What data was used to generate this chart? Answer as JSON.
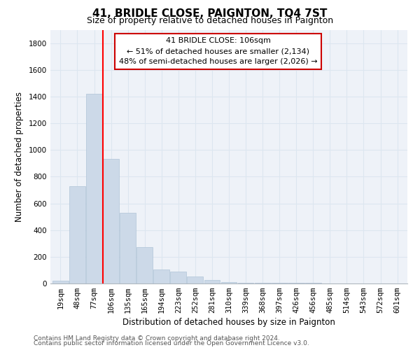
{
  "title": "41, BRIDLE CLOSE, PAIGNTON, TQ4 7ST",
  "subtitle": "Size of property relative to detached houses in Paignton",
  "xlabel": "Distribution of detached houses by size in Paignton",
  "ylabel": "Number of detached properties",
  "bar_labels": [
    "19sqm",
    "48sqm",
    "77sqm",
    "106sqm",
    "135sqm",
    "165sqm",
    "194sqm",
    "223sqm",
    "252sqm",
    "281sqm",
    "310sqm",
    "339sqm",
    "368sqm",
    "397sqm",
    "426sqm",
    "456sqm",
    "485sqm",
    "514sqm",
    "543sqm",
    "572sqm",
    "601sqm"
  ],
  "bar_values": [
    20,
    730,
    1420,
    935,
    530,
    270,
    103,
    90,
    50,
    25,
    10,
    5,
    3,
    3,
    3,
    3,
    2,
    2,
    2,
    2,
    2
  ],
  "bar_color": "#ccd9e8",
  "bar_edge_color": "#b0c4d8",
  "vline_x_index": 3,
  "vline_color": "red",
  "annotation_lines": [
    "41 BRIDLE CLOSE: 106sqm",
    "← 51% of detached houses are smaller (2,134)",
    "48% of semi-detached houses are larger (2,026) →"
  ],
  "annotation_box_color": "white",
  "annotation_box_edge": "#cc0000",
  "ylim": [
    0,
    1900
  ],
  "yticks": [
    0,
    200,
    400,
    600,
    800,
    1000,
    1200,
    1400,
    1600,
    1800
  ],
  "footer_line1": "Contains HM Land Registry data © Crown copyright and database right 2024.",
  "footer_line2": "Contains public sector information licensed under the Open Government Licence v3.0.",
  "title_fontsize": 11,
  "subtitle_fontsize": 9,
  "axis_label_fontsize": 8.5,
  "tick_fontsize": 7.5,
  "annotation_fontsize": 8,
  "footer_fontsize": 6.5,
  "grid_color": "#dce6f0",
  "bg_color": "#eef2f8"
}
